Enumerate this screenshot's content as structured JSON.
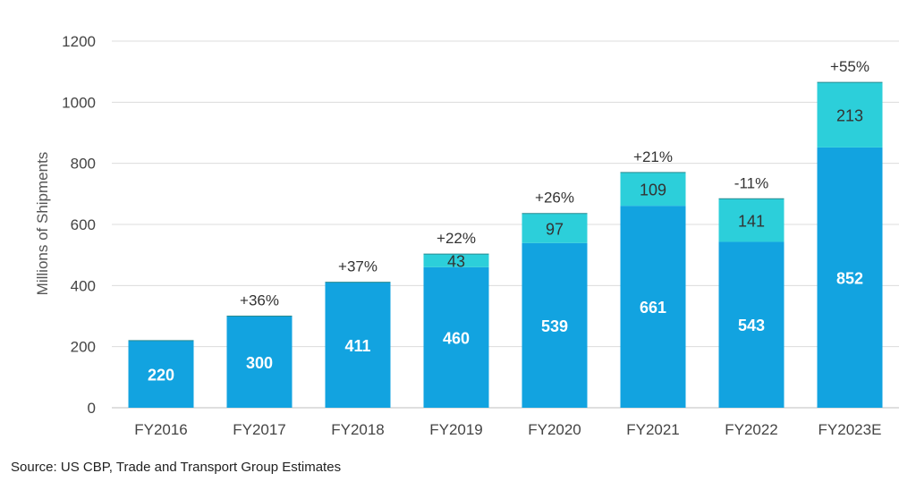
{
  "chart_data": {
    "type": "bar",
    "stacked": true,
    "categories": [
      "FY2016",
      "FY2017",
      "FY2018",
      "FY2019",
      "FY2020",
      "FY2021",
      "FY2022",
      "FY2023E"
    ],
    "series": [
      {
        "values": [
          220,
          300,
          411,
          460,
          539,
          661,
          543,
          852
        ],
        "color": "#12a3e0"
      },
      {
        "values": [
          0,
          0,
          0,
          43,
          97,
          109,
          141,
          213
        ],
        "color": "#2ccfda"
      }
    ],
    "growth_labels": [
      "",
      "+36%",
      "+37%",
      "+22%",
      "+26%",
      "+21%",
      "-11%",
      "+55%"
    ],
    "ylabel": "Millions of Shipments",
    "ylim": [
      0,
      1200
    ],
    "yticks": [
      0,
      200,
      400,
      600,
      800,
      1000,
      1200
    ],
    "grid": true,
    "legend": "none"
  },
  "source_note": "Source: US CBP, Trade and Transport Group Estimates"
}
